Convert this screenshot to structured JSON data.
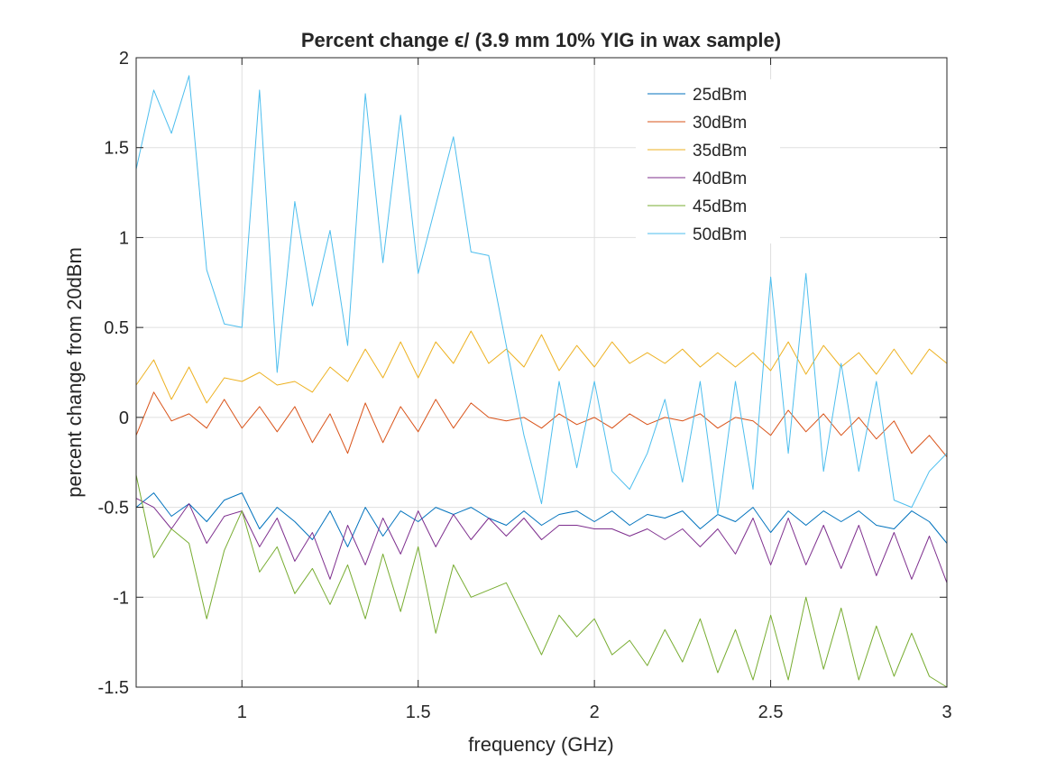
{
  "chart_data": {
    "type": "line",
    "title": "Percent change ϵ/ (3.9 mm 10% YIG in wax sample)",
    "xlabel": "frequency (GHz)",
    "ylabel": "percent change from 20dBm",
    "xlim": [
      0.7,
      3.0
    ],
    "ylim": [
      -1.5,
      2.0
    ],
    "xticks": [
      1,
      1.5,
      2,
      2.5,
      3
    ],
    "xtick_labels": [
      "1",
      "1.5",
      "2",
      "2.5",
      "3"
    ],
    "yticks": [
      -1.5,
      -1,
      -0.5,
      0,
      0.5,
      1,
      1.5,
      2
    ],
    "ytick_labels": [
      "-1.5",
      "-1",
      "-0.5",
      "0",
      "0.5",
      "1",
      "1.5",
      "2"
    ],
    "grid": true,
    "legend_position": "top-right",
    "x": [
      0.7,
      0.75,
      0.8,
      0.85,
      0.9,
      0.95,
      1.0,
      1.05,
      1.1,
      1.15,
      1.2,
      1.25,
      1.3,
      1.35,
      1.4,
      1.45,
      1.5,
      1.55,
      1.6,
      1.65,
      1.7,
      1.75,
      1.8,
      1.85,
      1.9,
      1.95,
      2.0,
      2.05,
      2.1,
      2.15,
      2.2,
      2.25,
      2.3,
      2.35,
      2.4,
      2.45,
      2.5,
      2.55,
      2.6,
      2.65,
      2.7,
      2.75,
      2.8,
      2.85,
      2.9,
      2.95,
      3.0
    ],
    "series": [
      {
        "name": "25dBm",
        "color": "#0072BD",
        "values": [
          -0.5,
          -0.42,
          -0.55,
          -0.48,
          -0.58,
          -0.46,
          -0.42,
          -0.62,
          -0.5,
          -0.58,
          -0.68,
          -0.52,
          -0.72,
          -0.5,
          -0.66,
          -0.52,
          -0.58,
          -0.5,
          -0.54,
          -0.5,
          -0.56,
          -0.6,
          -0.52,
          -0.6,
          -0.54,
          -0.52,
          -0.58,
          -0.52,
          -0.6,
          -0.54,
          -0.56,
          -0.52,
          -0.62,
          -0.54,
          -0.58,
          -0.5,
          -0.64,
          -0.52,
          -0.6,
          -0.52,
          -0.58,
          -0.52,
          -0.6,
          -0.62,
          -0.52,
          -0.58,
          -0.7
        ]
      },
      {
        "name": "30dBm",
        "color": "#D95319",
        "values": [
          -0.1,
          0.14,
          -0.02,
          0.02,
          -0.06,
          0.1,
          -0.06,
          0.06,
          -0.08,
          0.06,
          -0.14,
          0.02,
          -0.2,
          0.08,
          -0.14,
          0.06,
          -0.08,
          0.1,
          -0.06,
          0.08,
          0.0,
          -0.02,
          0.0,
          -0.06,
          0.02,
          -0.04,
          0.0,
          -0.06,
          0.02,
          -0.04,
          0.0,
          -0.02,
          0.02,
          -0.06,
          0.0,
          -0.02,
          -0.1,
          0.04,
          -0.08,
          0.02,
          -0.1,
          0.0,
          -0.12,
          -0.02,
          -0.2,
          -0.1,
          -0.22
        ]
      },
      {
        "name": "35dBm",
        "color": "#EDB120",
        "values": [
          0.18,
          0.32,
          0.1,
          0.28,
          0.08,
          0.22,
          0.2,
          0.25,
          0.18,
          0.2,
          0.14,
          0.28,
          0.2,
          0.38,
          0.22,
          0.42,
          0.22,
          0.42,
          0.3,
          0.48,
          0.3,
          0.38,
          0.28,
          0.46,
          0.26,
          0.4,
          0.28,
          0.42,
          0.3,
          0.36,
          0.3,
          0.38,
          0.28,
          0.36,
          0.28,
          0.36,
          0.26,
          0.42,
          0.24,
          0.4,
          0.28,
          0.36,
          0.24,
          0.38,
          0.24,
          0.38,
          0.3
        ]
      },
      {
        "name": "40dBm",
        "color": "#7E2F8E",
        "values": [
          -0.45,
          -0.5,
          -0.62,
          -0.48,
          -0.7,
          -0.55,
          -0.52,
          -0.72,
          -0.56,
          -0.8,
          -0.64,
          -0.9,
          -0.6,
          -0.82,
          -0.56,
          -0.76,
          -0.52,
          -0.72,
          -0.54,
          -0.68,
          -0.56,
          -0.66,
          -0.56,
          -0.68,
          -0.6,
          -0.6,
          -0.62,
          -0.62,
          -0.66,
          -0.62,
          -0.68,
          -0.62,
          -0.72,
          -0.62,
          -0.76,
          -0.56,
          -0.82,
          -0.56,
          -0.82,
          -0.6,
          -0.84,
          -0.6,
          -0.88,
          -0.64,
          -0.9,
          -0.66,
          -0.92
        ]
      },
      {
        "name": "45dBm",
        "color": "#77AC30",
        "values": [
          -0.32,
          -0.78,
          -0.62,
          -0.7,
          -1.12,
          -0.74,
          -0.52,
          -0.86,
          -0.72,
          -0.98,
          -0.84,
          -1.04,
          -0.82,
          -1.12,
          -0.76,
          -1.08,
          -0.72,
          -1.2,
          -0.82,
          -1.0,
          -0.96,
          -0.92,
          -1.12,
          -1.32,
          -1.1,
          -1.22,
          -1.12,
          -1.32,
          -1.24,
          -1.38,
          -1.18,
          -1.36,
          -1.12,
          -1.42,
          -1.18,
          -1.46,
          -1.1,
          -1.46,
          -1.0,
          -1.4,
          -1.06,
          -1.46,
          -1.16,
          -1.44,
          -1.2,
          -1.44,
          -1.5
        ]
      },
      {
        "name": "50dBm",
        "color": "#4DBEEE",
        "values": [
          1.38,
          1.82,
          1.58,
          1.9,
          0.82,
          0.52,
          0.5,
          1.82,
          0.25,
          1.2,
          0.62,
          1.04,
          0.4,
          1.8,
          0.86,
          1.68,
          0.8,
          1.18,
          1.56,
          0.92,
          0.9,
          0.4,
          -0.1,
          -0.48,
          0.2,
          -0.28,
          0.2,
          -0.3,
          -0.4,
          -0.2,
          0.1,
          -0.36,
          0.2,
          -0.54,
          0.2,
          -0.4,
          0.78,
          -0.2,
          0.8,
          -0.3,
          0.3,
          -0.3,
          0.2,
          -0.46,
          -0.5,
          -0.3,
          -0.2
        ]
      }
    ]
  }
}
